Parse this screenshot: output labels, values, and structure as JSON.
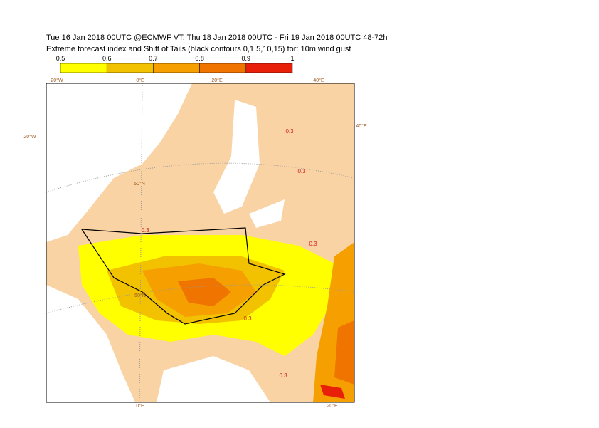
{
  "header": {
    "line1": "Tue 16 Jan 2018 00UTC @ECMWF VT: Thu 18 Jan 2018 00UTC - Fri 19 Jan 2018 00UTC  48-72h",
    "line2": "Extreme forecast index and Shift of Tails (black contours 0,1,5,10,15) for: 10m wind gust"
  },
  "colorbar": {
    "ticks": [
      0.5,
      0.6,
      0.7,
      0.8,
      0.9,
      1
    ],
    "colors": [
      "#ffff00",
      "#f2c200",
      "#f5a000",
      "#f07400",
      "#e8200a"
    ]
  },
  "map": {
    "labels": [
      "20°W",
      "0°E",
      "20°E",
      "40°E",
      "20°W",
      "40°E",
      "60°N",
      "50°N",
      "0°E",
      "20°E",
      "0.3",
      "0.3",
      "0.3",
      "0.3",
      "0.3",
      "0.3"
    ]
  }
}
